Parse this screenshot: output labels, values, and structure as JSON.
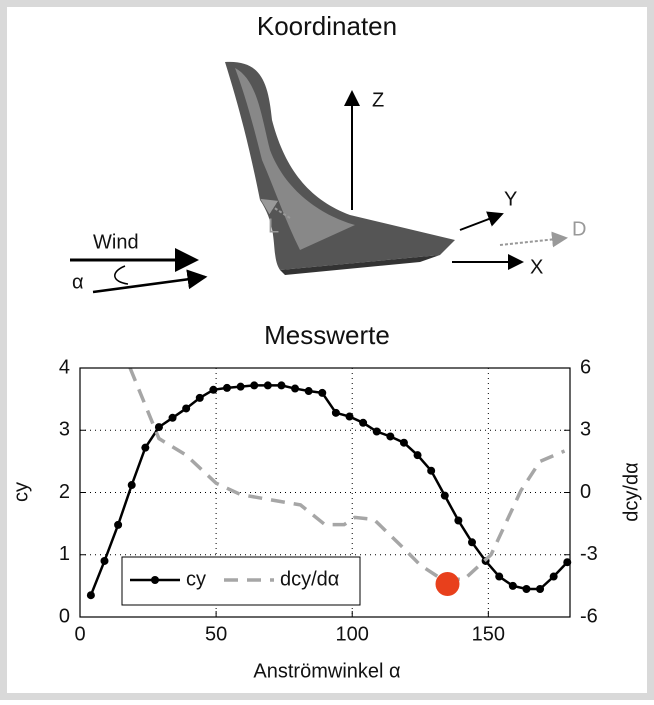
{
  "diagram": {
    "title": "Koordinaten",
    "z_label": "Z",
    "y_label": "Y",
    "x_label": "X",
    "lift_label": "L",
    "drag_label": "D",
    "wind_label": "Wind",
    "alpha_label": "α"
  },
  "chart_data": {
    "type": "line",
    "title": "Messwerte",
    "x_label": "Anströmwinkel α",
    "y_label": "cy",
    "y2_label": "dcy/dα",
    "xlim": [
      0,
      180
    ],
    "xticks": [
      0,
      50,
      100,
      150
    ],
    "ylim": [
      0,
      4
    ],
    "yticks": [
      0,
      1,
      2,
      3,
      4
    ],
    "y2lim": [
      -6,
      6
    ],
    "y2ticks": [
      -6,
      -3,
      0,
      3,
      6
    ],
    "grid": true,
    "legend": "lower left",
    "series": [
      {
        "name": "cy",
        "color": "#000000",
        "dashed": false,
        "markers": true,
        "x": [
          4,
          9,
          14,
          19,
          24,
          29,
          34,
          39,
          44,
          49,
          54,
          59,
          64,
          69,
          74,
          79,
          84,
          89,
          94,
          99,
          104,
          109,
          114,
          119,
          124,
          129,
          134,
          139,
          144,
          149,
          154,
          159,
          164,
          169,
          174,
          179
        ],
        "values": [
          0.35,
          0.9,
          1.48,
          2.12,
          2.72,
          3.05,
          3.2,
          3.35,
          3.52,
          3.65,
          3.68,
          3.7,
          3.72,
          3.72,
          3.72,
          3.67,
          3.63,
          3.6,
          3.28,
          3.22,
          3.12,
          2.98,
          2.9,
          2.8,
          2.6,
          2.35,
          1.95,
          1.55,
          1.2,
          0.9,
          0.65,
          0.5,
          0.45,
          0.45,
          0.65,
          0.88
        ]
      },
      {
        "name": "dcy/dα",
        "color": "#a6a6a6",
        "dashed": true,
        "markers": false,
        "axis": "y2",
        "x": [
          18.4,
          29,
          39,
          50,
          59,
          70,
          81,
          90,
          97,
          101,
          108,
          119,
          125,
          132,
          141,
          151,
          162,
          169,
          178
        ],
        "values": [
          6,
          2.6,
          1.8,
          0.45,
          -0.1,
          -0.35,
          -0.6,
          -1.55,
          -1.55,
          -1.2,
          -1.3,
          -2.7,
          -3.5,
          -4.1,
          -4.2,
          -3,
          0.1,
          1.5,
          2.0
        ]
      }
    ],
    "highlight": {
      "x": 135,
      "y": 0.53,
      "color": "#e8401c"
    }
  }
}
